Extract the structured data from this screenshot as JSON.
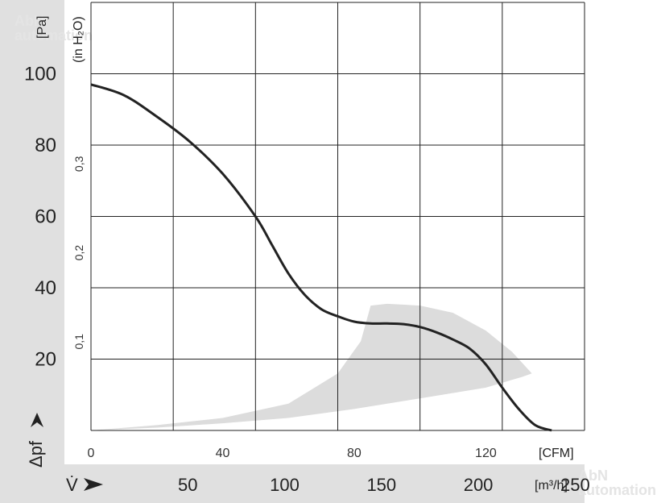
{
  "watermark": {
    "brand": "AbN",
    "sub": "automation"
  },
  "chart_data": {
    "type": "line",
    "title": "",
    "x_unit": "[CFM]",
    "x2_unit": "[m³/h]",
    "y_unit": "[Pa]",
    "y2_unit": "(in H₂O)",
    "y_symbol": "Δpf",
    "x_symbol": "V̇",
    "xlim": [
      0,
      150
    ],
    "ylim": [
      0,
      120
    ],
    "x_ticks": [
      "0",
      "40",
      "80",
      "120"
    ],
    "x_tick_values": [
      0,
      40,
      80,
      120
    ],
    "x2_ticks": [
      "50",
      "100",
      "150",
      "200",
      "250"
    ],
    "x2_tick_values": [
      50,
      100,
      150,
      200,
      250
    ],
    "y_ticks": [
      "20",
      "40",
      "60",
      "80",
      "100"
    ],
    "y_tick_values": [
      20,
      40,
      60,
      80,
      100
    ],
    "y2_ticks": [
      "0,1",
      "0,2",
      "0,3"
    ],
    "y2_tick_values": [
      0.1,
      0.2,
      0.3
    ],
    "grid": true,
    "series": [
      {
        "x": [
          0,
          10,
          20,
          30,
          40,
          50,
          55,
          60,
          65,
          70,
          75,
          80,
          85,
          90,
          95,
          100,
          105,
          110,
          115,
          120,
          125,
          130,
          135,
          140
        ],
        "y": [
          97,
          94,
          88,
          81,
          72,
          60,
          52,
          44,
          38,
          34,
          32,
          30.5,
          30,
          30,
          29.8,
          29,
          27.5,
          25.5,
          23,
          18.5,
          12,
          6,
          1.5,
          0
        ]
      }
    ],
    "shaded_region": {
      "x": [
        0,
        20,
        40,
        60,
        75,
        82,
        85,
        90,
        100,
        110,
        120,
        128,
        134,
        131,
        120,
        100,
        80,
        60,
        40,
        20,
        0
      ],
      "y": [
        0,
        1.5,
        3.5,
        7.5,
        16,
        25,
        35,
        35.5,
        35,
        33,
        28,
        22,
        16,
        15,
        12,
        9,
        6,
        3.5,
        2,
        0.8,
        0
      ]
    },
    "colors": {
      "line": "#222222",
      "shade": "#dcdcdc",
      "band": "#e0e0e0",
      "grid": "#222222"
    }
  }
}
